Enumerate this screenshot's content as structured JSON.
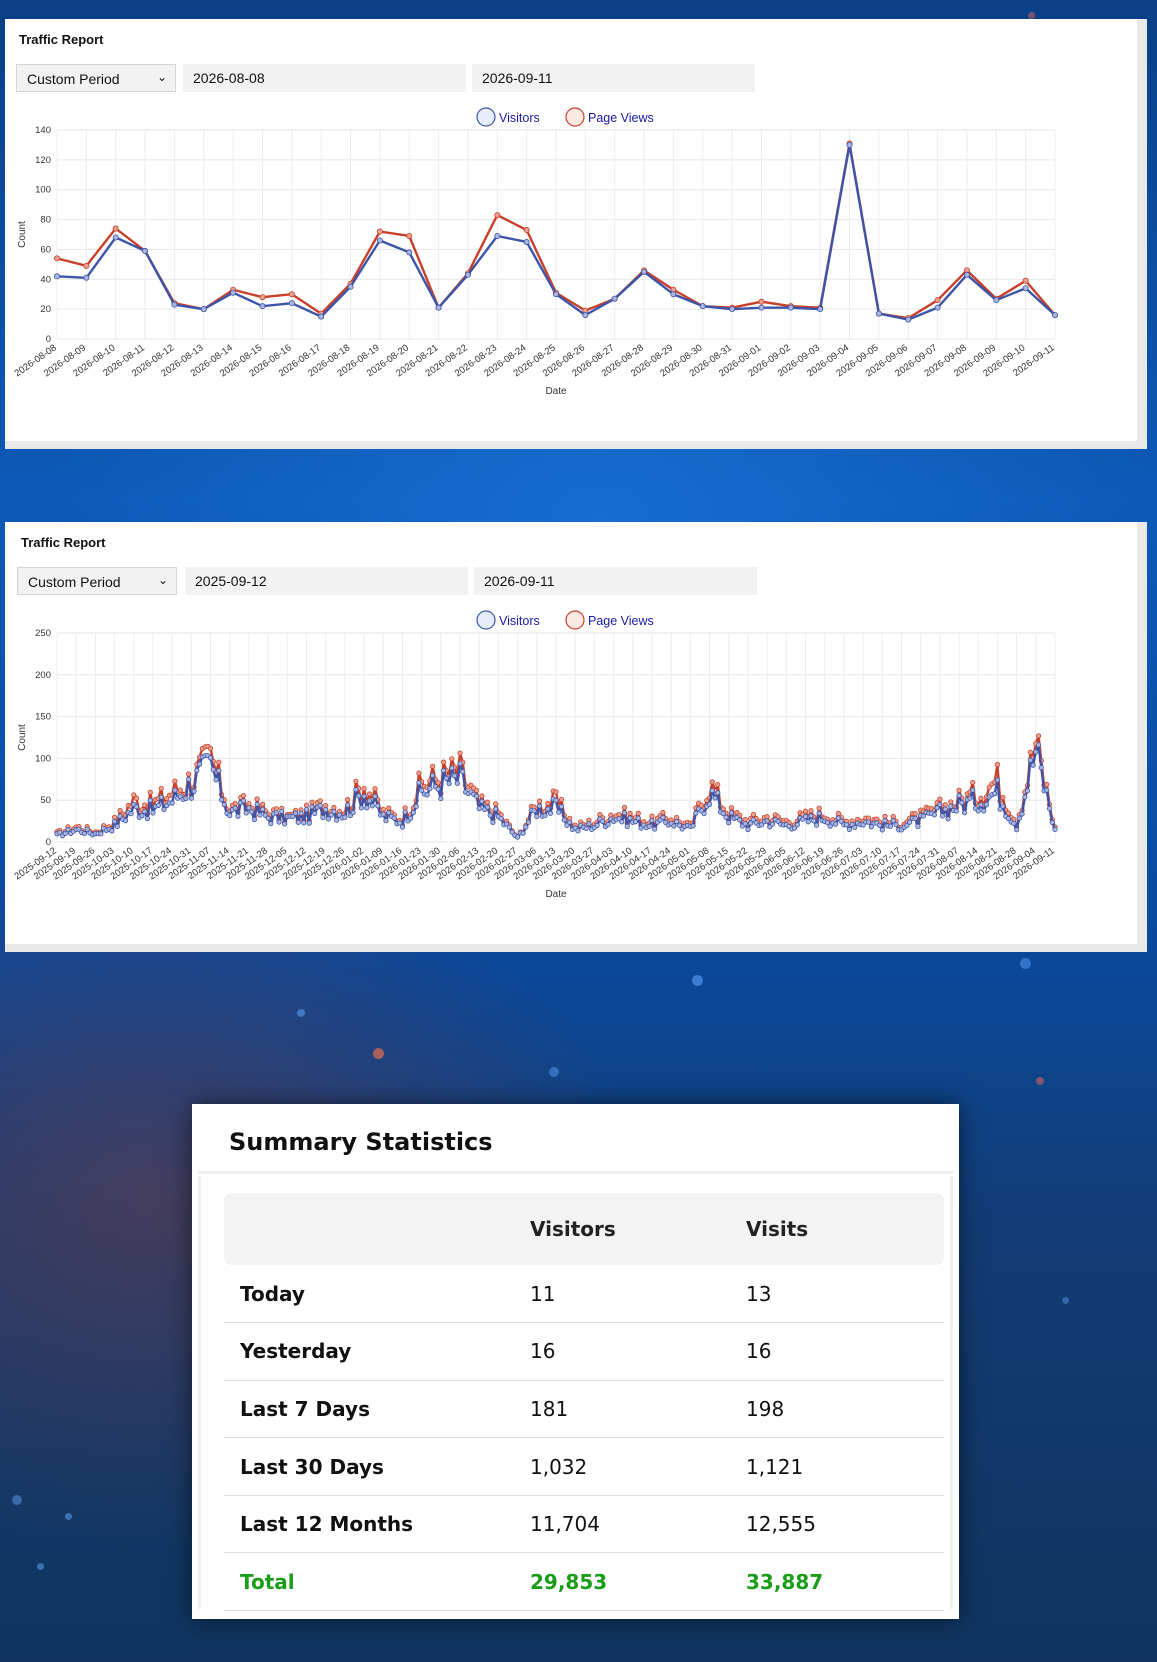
{
  "colors": {
    "visitors": "#3d55a8",
    "page_views": "#c8402a",
    "total": "#1a9e1a"
  },
  "reports": [
    {
      "title": "Traffic Report",
      "period_label": "Custom Period",
      "start_date": "2026-08-08",
      "end_date": "2026-09-11",
      "legend": {
        "visitors": "Visitors",
        "page_views": "Page Views"
      }
    },
    {
      "title": "Traffic Report",
      "period_label": "Custom Period",
      "start_date": "2025-09-12",
      "end_date": "2026-09-11",
      "legend": {
        "visitors": "Visitors",
        "page_views": "Page Views"
      }
    }
  ],
  "chart_data": [
    {
      "type": "line",
      "xlabel": "Date",
      "ylabel": "Count",
      "ylim": [
        0,
        140
      ],
      "yticks": [
        0,
        20,
        40,
        60,
        80,
        100,
        120,
        140
      ],
      "grid": true,
      "legend_position": "top-center",
      "x": [
        "2026-08-08",
        "2026-08-09",
        "2026-08-10",
        "2026-08-11",
        "2026-08-12",
        "2026-08-13",
        "2026-08-14",
        "2026-08-15",
        "2026-08-16",
        "2026-08-17",
        "2026-08-18",
        "2026-08-19",
        "2026-08-20",
        "2026-08-21",
        "2026-08-22",
        "2026-08-23",
        "2026-08-24",
        "2026-08-25",
        "2026-08-26",
        "2026-08-27",
        "2026-08-28",
        "2026-08-29",
        "2026-08-30",
        "2026-08-31",
        "2026-09-01",
        "2026-09-02",
        "2026-09-03",
        "2026-09-04",
        "2026-09-05",
        "2026-09-06",
        "2026-09-07",
        "2026-09-08",
        "2026-09-09",
        "2026-09-10",
        "2026-09-11"
      ],
      "series": [
        {
          "name": "Visitors",
          "values": [
            42,
            41,
            68,
            59,
            23,
            20,
            31,
            22,
            24,
            15,
            35,
            66,
            58,
            21,
            43,
            69,
            65,
            30,
            16,
            27,
            45,
            30,
            22,
            20,
            21,
            21,
            20,
            130,
            17,
            13,
            21,
            43,
            26,
            34,
            16
          ]
        },
        {
          "name": "Page Views",
          "values": [
            54,
            49,
            74,
            59,
            24,
            20,
            33,
            28,
            30,
            17,
            37,
            72,
            69,
            21,
            44,
            83,
            73,
            31,
            19,
            27,
            46,
            33,
            22,
            21,
            25,
            22,
            21,
            131,
            17,
            14,
            26,
            46,
            27,
            39,
            16
          ]
        }
      ]
    },
    {
      "type": "line",
      "xlabel": "Date",
      "ylabel": "Count",
      "ylim": [
        0,
        250
      ],
      "yticks": [
        0,
        50,
        100,
        150,
        200,
        250
      ],
      "grid": true,
      "legend_position": "top-center",
      "x_start": "2025-09-12",
      "x_end": "2026-09-11",
      "xticks": [
        "2025-09-12",
        "2025-09-19",
        "2025-09-26",
        "2025-10-03",
        "2025-10-10",
        "2025-10-17",
        "2025-10-24",
        "2025-10-31",
        "2025-11-07",
        "2025-11-14",
        "2025-11-21",
        "2025-11-28",
        "2025-12-05",
        "2025-12-12",
        "2025-12-19",
        "2025-12-26",
        "2026-01-02",
        "2026-01-09",
        "2026-01-16",
        "2026-01-23",
        "2026-01-30",
        "2026-02-06",
        "2026-02-13",
        "2026-02-20",
        "2026-02-27",
        "2026-03-06",
        "2026-03-13",
        "2026-03-20",
        "2026-03-27",
        "2026-04-03",
        "2026-04-10",
        "2026-04-17",
        "2026-04-24",
        "2026-05-01",
        "2026-05-08",
        "2026-05-15",
        "2026-05-22",
        "2026-05-29",
        "2026-06-05",
        "2026-06-12",
        "2026-06-19",
        "2026-06-26",
        "2026-07-03",
        "2026-07-10",
        "2026-07-17",
        "2026-07-24",
        "2026-07-31",
        "2026-08-07",
        "2026-08-14",
        "2026-08-21",
        "2026-08-28",
        "2026-09-04",
        "2026-09-11"
      ],
      "series": [
        {
          "name": "Visitors",
          "weekly_values": [
            8,
            15,
            10,
            20,
            40,
            38,
            50,
            70,
            90,
            35,
            40,
            30,
            28,
            30,
            40,
            35,
            60,
            30,
            25,
            60,
            70,
            75,
            40,
            30,
            5,
            40,
            40,
            15,
            20,
            30,
            25,
            20,
            25,
            15,
            60,
            30,
            20,
            25,
            20,
            25,
            30,
            20,
            25,
            20,
            20,
            25,
            35,
            45,
            50,
            60,
            20,
            110,
            15
          ]
        },
        {
          "name": "Page Views",
          "weekly_values": [
            10,
            18,
            12,
            24,
            50,
            45,
            60,
            75,
            100,
            40,
            45,
            35,
            30,
            34,
            45,
            40,
            70,
            35,
            28,
            70,
            78,
            85,
            45,
            35,
            5,
            45,
            48,
            18,
            24,
            35,
            30,
            24,
            30,
            18,
            70,
            35,
            25,
            30,
            25,
            30,
            35,
            24,
            30,
            24,
            24,
            30,
            40,
            50,
            58,
            75,
            24,
            120,
            18
          ]
        }
      ]
    }
  ],
  "summary": {
    "title": "Summary Statistics",
    "columns": [
      "",
      "Visitors",
      "Visits"
    ],
    "rows": [
      {
        "label": "Today",
        "visitors": "11",
        "visits": "13"
      },
      {
        "label": "Yesterday",
        "visitors": "16",
        "visits": "16"
      },
      {
        "label": "Last 7 Days",
        "visitors": "181",
        "visits": "198"
      },
      {
        "label": "Last 30 Days",
        "visitors": "1,032",
        "visits": "1,121"
      },
      {
        "label": "Last 12 Months",
        "visitors": "11,704",
        "visits": "12,555"
      },
      {
        "label": "Total",
        "visitors": "29,853",
        "visits": "33,887"
      }
    ]
  }
}
